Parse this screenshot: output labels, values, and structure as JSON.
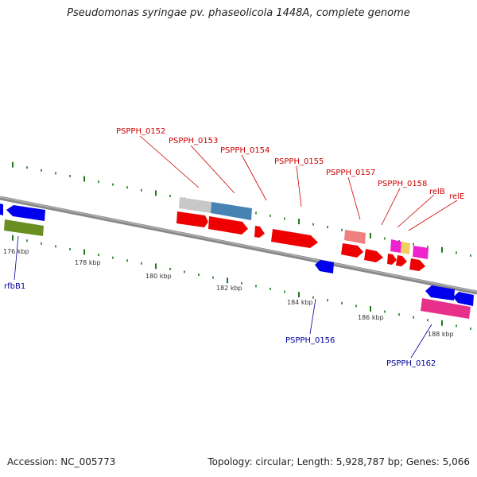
{
  "title": "Pseudomonas syringae pv. phaseolicola 1448A, complete genome",
  "accession": "Accession: NC_005773",
  "summary": "Topology: circular; Length: 5,928,787 bp; Genes: 5,066",
  "colors": {
    "backbone": "#888888",
    "tick": "#1f7a1f",
    "tick_label": "#333333",
    "label_top": "#cc0000",
    "label_bottom": "#000099",
    "cds": "#ee0000",
    "gene_pink": "#e8308a",
    "gene_blue": "#0000ee",
    "gene_olive": "#6b8e23",
    "gene_grey": "#c8c8c8",
    "gene_steel": "#4682b4",
    "gene_salmon": "#f08080",
    "gene_yellow": "#f0d060",
    "gene_magenta": "#ee22cc"
  },
  "ruler": {
    "labels": [
      "176 kbp",
      "178 kbp",
      "180 kbp",
      "182 kbp",
      "184 kbp",
      "186 kbp",
      "188 kbp"
    ]
  },
  "labels_top": [
    "PSPPH_0152",
    "PSPPH_0153",
    "PSPPH_0154",
    "PSPPH_0155",
    "PSPPH_0157",
    "PSPPH_0158",
    "relB",
    "relE"
  ],
  "labels_bottom": [
    "rfbB1",
    "PSPPH_0156",
    "PSPPH_0162"
  ]
}
